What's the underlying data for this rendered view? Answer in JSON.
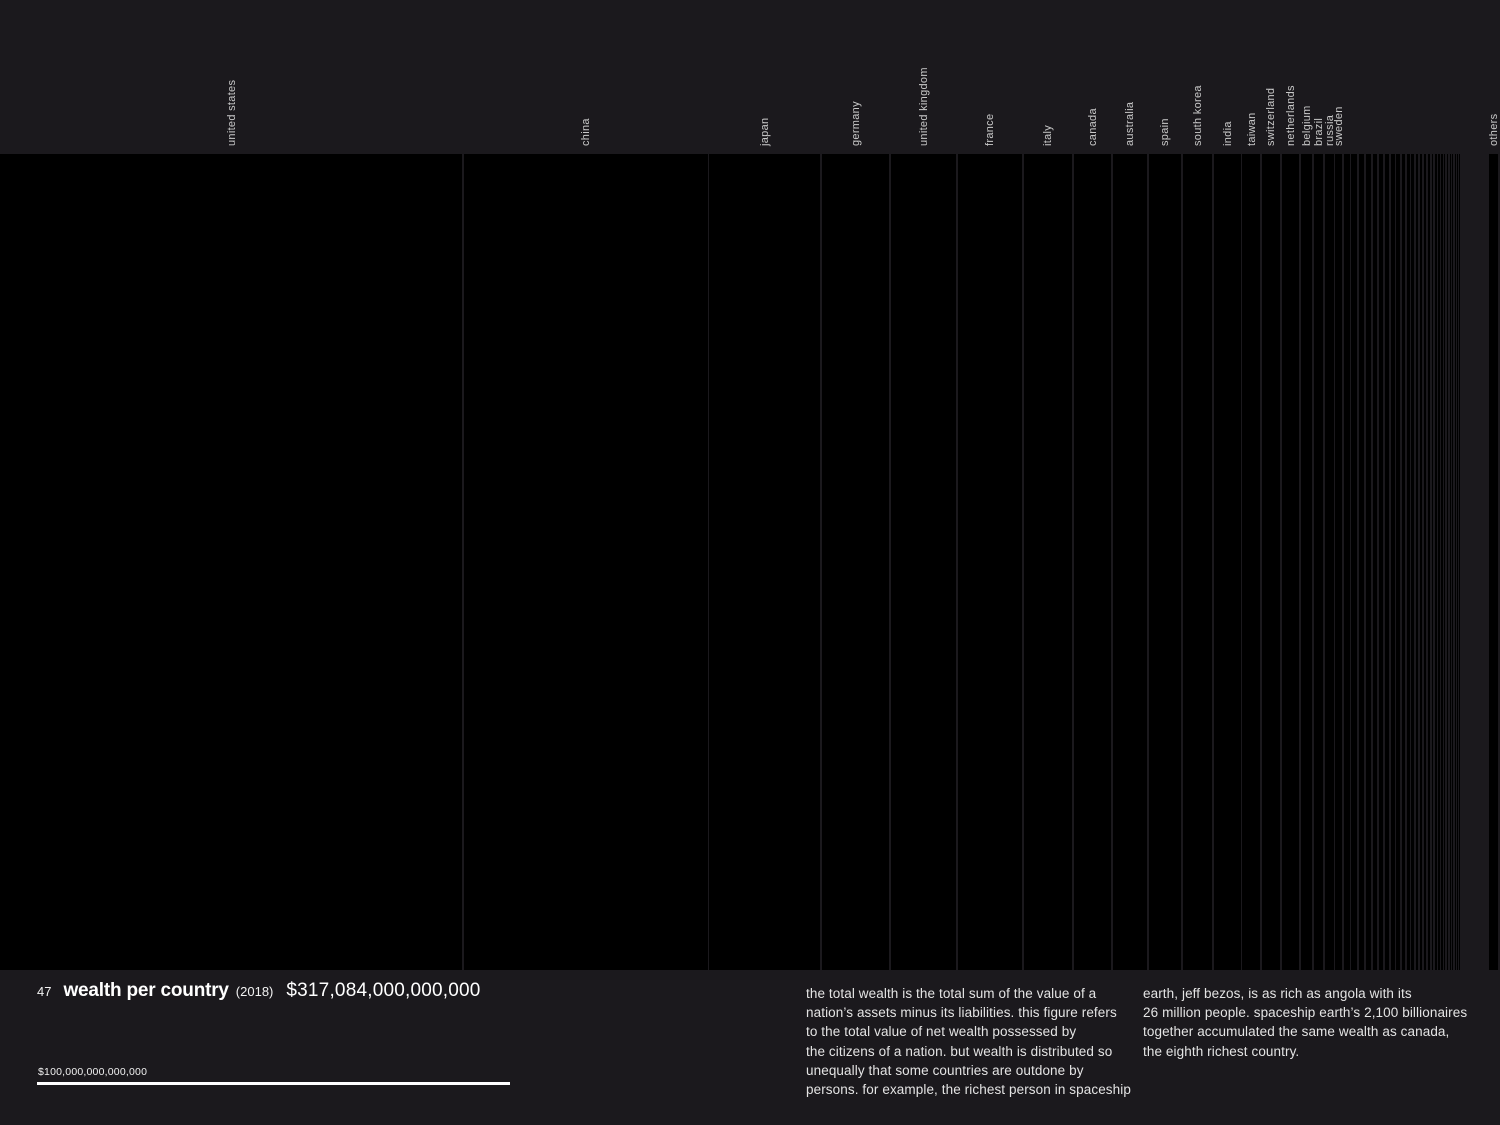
{
  "header": {
    "number": "47",
    "title": "wealth per country",
    "year": "(2018)",
    "total": "$317,084,000,000,000"
  },
  "scale": {
    "label": "$100,000,000,000,000"
  },
  "paragraphs": {
    "col1": "the total wealth is the total sum of the value of a\nnation’s assets minus its liabilities. this figure refers\nto the total value of net wealth possessed by\nthe citizens of a nation. but wealth is distributed so\nunequally that some countries are outdone by\npersons. for example, the richest person in spaceship",
    "col2": "earth, jeff bezos, is as rich as angola with its\n26 million people. spaceship earth’s 2,100 billionaires\ntogether accumulated the same wealth as canada,\nthe eighth richest country."
  },
  "chart_data": {
    "type": "bar",
    "variant": "proportional-width columns, each column width = country share of total world wealth",
    "title": "wealth per country",
    "subtitle": "(2018)",
    "total_label": "$317,084,000,000,000",
    "unit": "trillion USD",
    "grid": false,
    "legend": "none",
    "bar_color": "#000000",
    "background_color": "#1b191d",
    "scale_reference": {
      "label": "$100,000,000,000,000",
      "value_trillion_usd": 100
    },
    "series": [
      {
        "label": "united states",
        "value_trillion_usd": 98.2
      },
      {
        "label": "china",
        "value_trillion_usd": 51.9
      },
      {
        "label": "japan",
        "value_trillion_usd": 23.9
      },
      {
        "label": "germany",
        "value_trillion_usd": 14.5
      },
      {
        "label": "united kingdom",
        "value_trillion_usd": 14.2
      },
      {
        "label": "france",
        "value_trillion_usd": 13.9
      },
      {
        "label": "italy",
        "value_trillion_usd": 10.6
      },
      {
        "label": "canada",
        "value_trillion_usd": 8.3
      },
      {
        "label": "australia",
        "value_trillion_usd": 7.6
      },
      {
        "label": "spain",
        "value_trillion_usd": 7.2
      },
      {
        "label": "south korea",
        "value_trillion_usd": 6.6
      },
      {
        "label": "india",
        "value_trillion_usd": 6.0
      },
      {
        "label": "taiwan",
        "value_trillion_usd": 4.2
      },
      {
        "label": "switzerland",
        "value_trillion_usd": 4.1
      },
      {
        "label": "netherlands",
        "value_trillion_usd": 4.0
      },
      {
        "label": "belgium",
        "value_trillion_usd": 2.8
      },
      {
        "label": "brazil",
        "value_trillion_usd": 2.4
      },
      {
        "label": "russia",
        "value_trillion_usd": 2.2
      },
      {
        "label": "sweden",
        "value_trillion_usd": 1.7
      }
    ],
    "unlabeled_tail_trillion_usd": [
      1.65,
      1.58,
      1.5,
      1.43,
      1.36,
      1.29,
      1.23,
      1.17,
      1.11,
      1.05,
      1.0,
      0.95,
      0.9,
      0.85,
      0.81,
      0.77,
      0.73,
      0.69,
      0.65,
      0.62,
      0.59,
      0.56,
      0.53,
      0.5,
      0.47,
      0.44,
      0.41,
      0.39,
      0.36,
      0.34,
      0.32,
      0.3,
      0.28,
      0.27,
      0.25,
      0.23,
      0.22,
      0.21,
      0.19,
      0.18,
      0.17,
      0.16,
      0.15,
      0.14,
      0.13,
      0.125,
      0.117,
      0.11,
      0.104,
      0.097,
      0.091,
      0.086,
      0.081,
      0.076,
      0.071,
      0.067,
      0.063,
      0.059,
      0.056,
      0.052,
      0.049,
      0.046,
      0.043,
      0.041,
      0.038,
      0.036,
      0.034,
      0.032,
      0.03,
      0.028,
      0.026,
      0.025
    ],
    "others": {
      "label": "others",
      "value_trillion_usd": 2.3
    }
  }
}
